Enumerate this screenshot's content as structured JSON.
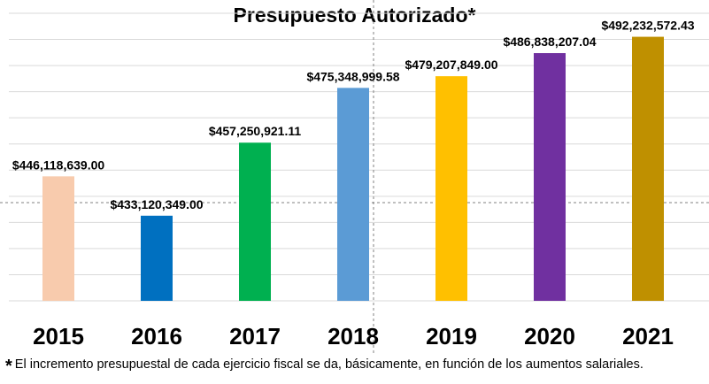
{
  "chart_data": {
    "type": "bar",
    "title": "Presupuesto Autorizado*",
    "categories": [
      "2015",
      "2016",
      "2017",
      "2018",
      "2019",
      "2020",
      "2021"
    ],
    "values": [
      446118639.0,
      433120349.0,
      457250921.11,
      475348999.58,
      479207849.0,
      486838207.04,
      492232572.43
    ],
    "value_labels": [
      "$446,118,639.00",
      "$433,120,349.00",
      "$457,250,921.11",
      "$475,348,999.58",
      "$479,207,849.00",
      "$486,838,207.04",
      "$492,232,572.43"
    ],
    "colors": [
      "#F8CBAD",
      "#0070C0",
      "#00B050",
      "#5B9BD5",
      "#FFC000",
      "#7030A0",
      "#BF9000"
    ],
    "xlabel": "",
    "ylabel": "",
    "ylim": [
      405000000,
      500000000
    ],
    "grid": true,
    "legend": "none"
  },
  "footnote": {
    "marker": "*",
    "text": "El incremento presupuestal de cada ejercicio fiscal se da, básicamente, en función de los aumentos salariales."
  }
}
